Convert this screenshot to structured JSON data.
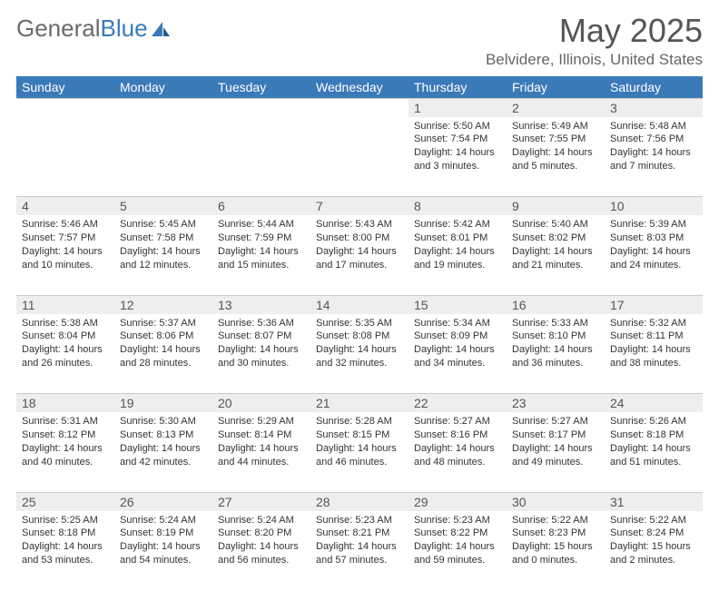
{
  "logo": {
    "text1": "General",
    "text2": "Blue"
  },
  "title": "May 2025",
  "location": "Belvidere, Illinois, United States",
  "colors": {
    "header_bg": "#3a7ab8",
    "header_text": "#ffffff",
    "daynum_bg": "#eeeeee",
    "border": "#cccccc",
    "body_text": "#333333",
    "title_text": "#555555",
    "logo_gray": "#6b6b6b"
  },
  "day_names": [
    "Sunday",
    "Monday",
    "Tuesday",
    "Wednesday",
    "Thursday",
    "Friday",
    "Saturday"
  ],
  "weeks": [
    {
      "nums": [
        "",
        "",
        "",
        "",
        "1",
        "2",
        "3"
      ],
      "cells": [
        null,
        null,
        null,
        null,
        {
          "sunrise": "Sunrise: 5:50 AM",
          "sunset": "Sunset: 7:54 PM",
          "daylight": "Daylight: 14 hours and 3 minutes."
        },
        {
          "sunrise": "Sunrise: 5:49 AM",
          "sunset": "Sunset: 7:55 PM",
          "daylight": "Daylight: 14 hours and 5 minutes."
        },
        {
          "sunrise": "Sunrise: 5:48 AM",
          "sunset": "Sunset: 7:56 PM",
          "daylight": "Daylight: 14 hours and 7 minutes."
        }
      ]
    },
    {
      "nums": [
        "4",
        "5",
        "6",
        "7",
        "8",
        "9",
        "10"
      ],
      "cells": [
        {
          "sunrise": "Sunrise: 5:46 AM",
          "sunset": "Sunset: 7:57 PM",
          "daylight": "Daylight: 14 hours and 10 minutes."
        },
        {
          "sunrise": "Sunrise: 5:45 AM",
          "sunset": "Sunset: 7:58 PM",
          "daylight": "Daylight: 14 hours and 12 minutes."
        },
        {
          "sunrise": "Sunrise: 5:44 AM",
          "sunset": "Sunset: 7:59 PM",
          "daylight": "Daylight: 14 hours and 15 minutes."
        },
        {
          "sunrise": "Sunrise: 5:43 AM",
          "sunset": "Sunset: 8:00 PM",
          "daylight": "Daylight: 14 hours and 17 minutes."
        },
        {
          "sunrise": "Sunrise: 5:42 AM",
          "sunset": "Sunset: 8:01 PM",
          "daylight": "Daylight: 14 hours and 19 minutes."
        },
        {
          "sunrise": "Sunrise: 5:40 AM",
          "sunset": "Sunset: 8:02 PM",
          "daylight": "Daylight: 14 hours and 21 minutes."
        },
        {
          "sunrise": "Sunrise: 5:39 AM",
          "sunset": "Sunset: 8:03 PM",
          "daylight": "Daylight: 14 hours and 24 minutes."
        }
      ]
    },
    {
      "nums": [
        "11",
        "12",
        "13",
        "14",
        "15",
        "16",
        "17"
      ],
      "cells": [
        {
          "sunrise": "Sunrise: 5:38 AM",
          "sunset": "Sunset: 8:04 PM",
          "daylight": "Daylight: 14 hours and 26 minutes."
        },
        {
          "sunrise": "Sunrise: 5:37 AM",
          "sunset": "Sunset: 8:06 PM",
          "daylight": "Daylight: 14 hours and 28 minutes."
        },
        {
          "sunrise": "Sunrise: 5:36 AM",
          "sunset": "Sunset: 8:07 PM",
          "daylight": "Daylight: 14 hours and 30 minutes."
        },
        {
          "sunrise": "Sunrise: 5:35 AM",
          "sunset": "Sunset: 8:08 PM",
          "daylight": "Daylight: 14 hours and 32 minutes."
        },
        {
          "sunrise": "Sunrise: 5:34 AM",
          "sunset": "Sunset: 8:09 PM",
          "daylight": "Daylight: 14 hours and 34 minutes."
        },
        {
          "sunrise": "Sunrise: 5:33 AM",
          "sunset": "Sunset: 8:10 PM",
          "daylight": "Daylight: 14 hours and 36 minutes."
        },
        {
          "sunrise": "Sunrise: 5:32 AM",
          "sunset": "Sunset: 8:11 PM",
          "daylight": "Daylight: 14 hours and 38 minutes."
        }
      ]
    },
    {
      "nums": [
        "18",
        "19",
        "20",
        "21",
        "22",
        "23",
        "24"
      ],
      "cells": [
        {
          "sunrise": "Sunrise: 5:31 AM",
          "sunset": "Sunset: 8:12 PM",
          "daylight": "Daylight: 14 hours and 40 minutes."
        },
        {
          "sunrise": "Sunrise: 5:30 AM",
          "sunset": "Sunset: 8:13 PM",
          "daylight": "Daylight: 14 hours and 42 minutes."
        },
        {
          "sunrise": "Sunrise: 5:29 AM",
          "sunset": "Sunset: 8:14 PM",
          "daylight": "Daylight: 14 hours and 44 minutes."
        },
        {
          "sunrise": "Sunrise: 5:28 AM",
          "sunset": "Sunset: 8:15 PM",
          "daylight": "Daylight: 14 hours and 46 minutes."
        },
        {
          "sunrise": "Sunrise: 5:27 AM",
          "sunset": "Sunset: 8:16 PM",
          "daylight": "Daylight: 14 hours and 48 minutes."
        },
        {
          "sunrise": "Sunrise: 5:27 AM",
          "sunset": "Sunset: 8:17 PM",
          "daylight": "Daylight: 14 hours and 49 minutes."
        },
        {
          "sunrise": "Sunrise: 5:26 AM",
          "sunset": "Sunset: 8:18 PM",
          "daylight": "Daylight: 14 hours and 51 minutes."
        }
      ]
    },
    {
      "nums": [
        "25",
        "26",
        "27",
        "28",
        "29",
        "30",
        "31"
      ],
      "cells": [
        {
          "sunrise": "Sunrise: 5:25 AM",
          "sunset": "Sunset: 8:18 PM",
          "daylight": "Daylight: 14 hours and 53 minutes."
        },
        {
          "sunrise": "Sunrise: 5:24 AM",
          "sunset": "Sunset: 8:19 PM",
          "daylight": "Daylight: 14 hours and 54 minutes."
        },
        {
          "sunrise": "Sunrise: 5:24 AM",
          "sunset": "Sunset: 8:20 PM",
          "daylight": "Daylight: 14 hours and 56 minutes."
        },
        {
          "sunrise": "Sunrise: 5:23 AM",
          "sunset": "Sunset: 8:21 PM",
          "daylight": "Daylight: 14 hours and 57 minutes."
        },
        {
          "sunrise": "Sunrise: 5:23 AM",
          "sunset": "Sunset: 8:22 PM",
          "daylight": "Daylight: 14 hours and 59 minutes."
        },
        {
          "sunrise": "Sunrise: 5:22 AM",
          "sunset": "Sunset: 8:23 PM",
          "daylight": "Daylight: 15 hours and 0 minutes."
        },
        {
          "sunrise": "Sunrise: 5:22 AM",
          "sunset": "Sunset: 8:24 PM",
          "daylight": "Daylight: 15 hours and 2 minutes."
        }
      ]
    }
  ]
}
